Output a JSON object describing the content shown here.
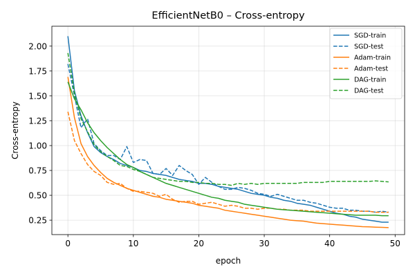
{
  "chart_data": {
    "type": "line",
    "title": "EfficientNetB0 – Cross-entropy",
    "xlabel": "epoch",
    "ylabel": "Cross-entropy",
    "xlim": [
      -2.45,
      51.45
    ],
    "ylim": [
      0.105,
      2.2
    ],
    "xticks": [
      0,
      10,
      20,
      30,
      40,
      50
    ],
    "yticks": [
      0.25,
      0.5,
      0.75,
      1.0,
      1.25,
      1.5,
      1.75,
      2.0
    ],
    "grid": true,
    "legend_position": "top-right",
    "series": [
      {
        "name": "SGD-train",
        "color": "#1f77b4",
        "dash": "solid",
        "values": [
          2.1,
          1.55,
          1.3,
          1.13,
          0.99,
          0.93,
          0.89,
          0.86,
          0.82,
          0.8,
          0.78,
          0.75,
          0.74,
          0.72,
          0.71,
          0.7,
          0.68,
          0.66,
          0.65,
          0.64,
          0.62,
          0.62,
          0.61,
          0.59,
          0.58,
          0.57,
          0.56,
          0.54,
          0.52,
          0.51,
          0.5,
          0.48,
          0.47,
          0.45,
          0.44,
          0.42,
          0.41,
          0.4,
          0.38,
          0.36,
          0.34,
          0.32,
          0.31,
          0.29,
          0.28,
          0.26,
          0.25,
          0.24,
          0.23,
          0.23
        ]
      },
      {
        "name": "SGD-test",
        "color": "#1f77b4",
        "dash": "dashed",
        "values": [
          1.82,
          1.5,
          1.18,
          1.27,
          1.02,
          0.95,
          0.9,
          0.9,
          0.86,
          0.99,
          0.83,
          0.86,
          0.85,
          0.72,
          0.71,
          0.77,
          0.7,
          0.8,
          0.75,
          0.71,
          0.61,
          0.68,
          0.63,
          0.59,
          0.56,
          0.56,
          0.58,
          0.57,
          0.55,
          0.52,
          0.51,
          0.49,
          0.51,
          0.49,
          0.47,
          0.45,
          0.45,
          0.43,
          0.42,
          0.4,
          0.38,
          0.37,
          0.37,
          0.35,
          0.35,
          0.34,
          0.34,
          0.33,
          0.34,
          0.33
        ]
      },
      {
        "name": "Adam-train",
        "color": "#ff7f0e",
        "dash": "solid",
        "values": [
          1.69,
          1.28,
          1.02,
          0.89,
          0.8,
          0.73,
          0.67,
          0.63,
          0.6,
          0.57,
          0.55,
          0.53,
          0.51,
          0.49,
          0.48,
          0.46,
          0.45,
          0.44,
          0.43,
          0.42,
          0.4,
          0.39,
          0.38,
          0.37,
          0.35,
          0.34,
          0.33,
          0.32,
          0.31,
          0.3,
          0.29,
          0.28,
          0.27,
          0.26,
          0.25,
          0.245,
          0.24,
          0.23,
          0.22,
          0.215,
          0.21,
          0.205,
          0.2,
          0.195,
          0.19,
          0.185,
          0.183,
          0.18,
          0.178,
          0.175
        ]
      },
      {
        "name": "Adam-test",
        "color": "#ff7f0e",
        "dash": "dashed",
        "values": [
          1.34,
          1.05,
          0.92,
          0.81,
          0.74,
          0.7,
          0.63,
          0.61,
          0.62,
          0.57,
          0.54,
          0.54,
          0.53,
          0.52,
          0.49,
          0.51,
          0.46,
          0.43,
          0.44,
          0.44,
          0.41,
          0.42,
          0.43,
          0.41,
          0.39,
          0.4,
          0.39,
          0.37,
          0.37,
          0.36,
          0.37,
          0.37,
          0.36,
          0.36,
          0.35,
          0.35,
          0.35,
          0.34,
          0.34,
          0.34,
          0.34,
          0.34,
          0.34,
          0.34,
          0.34,
          0.34,
          0.34,
          0.33,
          0.33,
          0.33
        ]
      },
      {
        "name": "DAG-train",
        "color": "#2ca02c",
        "dash": "solid",
        "values": [
          1.64,
          1.47,
          1.36,
          1.23,
          1.13,
          1.05,
          0.98,
          0.92,
          0.86,
          0.81,
          0.78,
          0.74,
          0.71,
          0.68,
          0.65,
          0.62,
          0.6,
          0.58,
          0.56,
          0.54,
          0.52,
          0.5,
          0.48,
          0.47,
          0.45,
          0.44,
          0.43,
          0.41,
          0.4,
          0.39,
          0.38,
          0.37,
          0.36,
          0.355,
          0.35,
          0.345,
          0.34,
          0.335,
          0.33,
          0.325,
          0.32,
          0.315,
          0.31,
          0.305,
          0.3,
          0.3,
          0.3,
          0.3,
          0.295,
          0.295
        ]
      },
      {
        "name": "DAG-test",
        "color": "#2ca02c",
        "dash": "dashed",
        "values": [
          1.93,
          1.53,
          1.27,
          1.14,
          1.01,
          0.94,
          0.89,
          0.85,
          0.8,
          0.79,
          0.76,
          0.74,
          0.71,
          0.68,
          0.67,
          0.66,
          0.65,
          0.64,
          0.64,
          0.63,
          0.63,
          0.62,
          0.62,
          0.61,
          0.61,
          0.6,
          0.62,
          0.61,
          0.62,
          0.61,
          0.62,
          0.62,
          0.62,
          0.62,
          0.62,
          0.62,
          0.63,
          0.63,
          0.63,
          0.63,
          0.64,
          0.64,
          0.64,
          0.64,
          0.64,
          0.64,
          0.64,
          0.645,
          0.64,
          0.635
        ]
      }
    ]
  }
}
